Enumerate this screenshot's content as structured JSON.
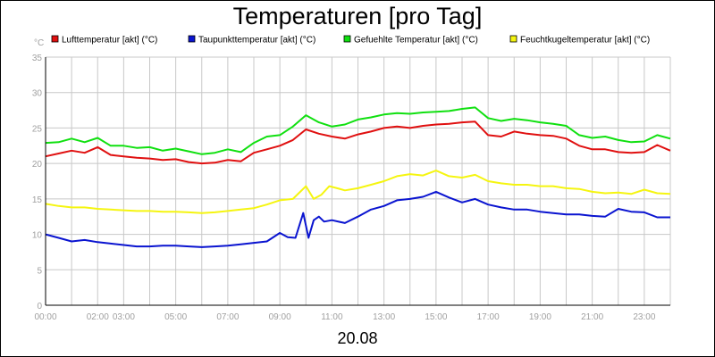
{
  "chart_data": {
    "type": "line",
    "title": "Temperaturen [pro Tag]",
    "ylabel": "°C",
    "xlabel": "20.08",
    "ylim": [
      0,
      35
    ],
    "xlim": [
      0,
      24
    ],
    "yticks": [
      0,
      5,
      10,
      15,
      20,
      25,
      30,
      35
    ],
    "xticks": [
      {
        "value": 0,
        "label": "00:00"
      },
      {
        "value": 2,
        "label": "02:00"
      },
      {
        "value": 3,
        "label": "03:00"
      },
      {
        "value": 5,
        "label": "05:00"
      },
      {
        "value": 7,
        "label": "07:00"
      },
      {
        "value": 9,
        "label": "09:00"
      },
      {
        "value": 11,
        "label": "11:00"
      },
      {
        "value": 13,
        "label": "13:00"
      },
      {
        "value": 15,
        "label": "15:00"
      },
      {
        "value": 17,
        "label": "17:00"
      },
      {
        "value": 19,
        "label": "19:00"
      },
      {
        "value": 21,
        "label": "21:00"
      },
      {
        "value": 23,
        "label": "23:00"
      }
    ],
    "grid": true,
    "legend_position": "top",
    "series": [
      {
        "name": "Lufttemperatur [akt] (°C)",
        "color": "#e01010",
        "x": [
          0,
          0.5,
          1,
          1.5,
          2,
          2.5,
          3,
          3.5,
          4,
          4.5,
          5,
          5.5,
          6,
          6.5,
          7,
          7.5,
          8,
          8.5,
          9,
          9.5,
          10,
          10.5,
          11,
          11.5,
          12,
          12.5,
          13,
          13.5,
          14,
          14.5,
          15,
          15.5,
          16,
          16.5,
          17,
          17.5,
          18,
          18.5,
          19,
          19.5,
          20,
          20.5,
          21,
          21.5,
          22,
          22.5,
          23,
          23.5,
          24
        ],
        "values": [
          21.0,
          21.4,
          21.8,
          21.5,
          22.3,
          21.2,
          21.0,
          20.8,
          20.7,
          20.5,
          20.6,
          20.2,
          20.0,
          20.1,
          20.5,
          20.3,
          21.5,
          22.0,
          22.5,
          23.3,
          24.8,
          24.2,
          23.8,
          23.5,
          24.1,
          24.5,
          25.0,
          25.2,
          25.0,
          25.3,
          25.5,
          25.6,
          25.8,
          25.9,
          24.0,
          23.8,
          24.5,
          24.2,
          24.0,
          23.9,
          23.5,
          22.5,
          22.0,
          22.0,
          21.6,
          21.5,
          21.6,
          22.6,
          21.8
        ]
      },
      {
        "name": "Taupunkttemperatur [akt] (°C)",
        "color": "#0a14d0",
        "x": [
          0,
          0.5,
          1,
          1.5,
          2,
          2.5,
          3,
          3.5,
          4,
          4.5,
          5,
          5.5,
          6,
          6.5,
          7,
          7.5,
          8,
          8.5,
          9,
          9.3,
          9.6,
          9.9,
          10.1,
          10.3,
          10.5,
          10.7,
          11,
          11.5,
          12,
          12.5,
          13,
          13.5,
          14,
          14.5,
          15,
          15.5,
          16,
          16.5,
          17,
          17.5,
          18,
          18.5,
          19,
          19.5,
          20,
          20.5,
          21,
          21.5,
          22,
          22.5,
          23,
          23.5,
          24
        ],
        "values": [
          10.0,
          9.5,
          9.0,
          9.2,
          8.9,
          8.7,
          8.5,
          8.3,
          8.3,
          8.4,
          8.4,
          8.3,
          8.2,
          8.3,
          8.4,
          8.6,
          8.8,
          9.0,
          10.2,
          9.6,
          9.5,
          13.0,
          9.5,
          12.0,
          12.5,
          11.8,
          12.0,
          11.6,
          12.5,
          13.5,
          14.0,
          14.8,
          15.0,
          15.3,
          16.0,
          15.2,
          14.5,
          15.0,
          14.2,
          13.8,
          13.5,
          13.5,
          13.2,
          13.0,
          12.8,
          12.8,
          12.6,
          12.5,
          13.6,
          13.2,
          13.1,
          12.4,
          12.4
        ]
      },
      {
        "name": "Gefuehlte Temperatur [akt] (°C)",
        "color": "#10e010",
        "x": [
          0,
          0.5,
          1,
          1.5,
          2,
          2.5,
          3,
          3.5,
          4,
          4.5,
          5,
          5.5,
          6,
          6.5,
          7,
          7.5,
          8,
          8.5,
          9,
          9.5,
          10,
          10.5,
          11,
          11.5,
          12,
          12.5,
          13,
          13.5,
          14,
          14.5,
          15,
          15.5,
          16,
          16.5,
          17,
          17.5,
          18,
          18.5,
          19,
          19.5,
          20,
          20.5,
          21,
          21.5,
          22,
          22.5,
          23,
          23.5,
          24
        ],
        "values": [
          22.9,
          23.0,
          23.5,
          23.0,
          23.6,
          22.5,
          22.5,
          22.2,
          22.3,
          21.8,
          22.1,
          21.7,
          21.3,
          21.5,
          22.0,
          21.6,
          22.9,
          23.8,
          24.0,
          25.2,
          26.8,
          25.8,
          25.2,
          25.5,
          26.2,
          26.5,
          26.9,
          27.1,
          27.0,
          27.2,
          27.3,
          27.4,
          27.7,
          27.9,
          26.4,
          26.0,
          26.3,
          26.1,
          25.8,
          25.6,
          25.3,
          24.0,
          23.6,
          23.8,
          23.3,
          23.0,
          23.1,
          24.0,
          23.5
        ]
      },
      {
        "name": "Feuchtkugeltemperatur [akt] (°C)",
        "color": "#f5f510",
        "x": [
          0,
          0.5,
          1,
          1.5,
          2,
          2.5,
          3,
          3.5,
          4,
          4.5,
          5,
          5.5,
          6,
          6.5,
          7,
          7.5,
          8,
          8.5,
          9,
          9.5,
          10,
          10.3,
          10.6,
          10.9,
          11.2,
          11.5,
          12,
          12.5,
          13,
          13.5,
          14,
          14.5,
          15,
          15.5,
          16,
          16.5,
          17,
          17.5,
          18,
          18.5,
          19,
          19.5,
          20,
          20.5,
          21,
          21.5,
          22,
          22.5,
          23,
          23.5,
          24
        ],
        "values": [
          14.3,
          14.0,
          13.8,
          13.8,
          13.6,
          13.5,
          13.4,
          13.3,
          13.3,
          13.2,
          13.2,
          13.1,
          13.0,
          13.1,
          13.3,
          13.5,
          13.7,
          14.2,
          14.8,
          15.0,
          16.8,
          15.0,
          15.6,
          16.8,
          16.5,
          16.2,
          16.5,
          17.0,
          17.5,
          18.2,
          18.5,
          18.3,
          19.0,
          18.2,
          18.0,
          18.4,
          17.5,
          17.2,
          17.0,
          17.0,
          16.8,
          16.8,
          16.5,
          16.4,
          16.0,
          15.8,
          15.9,
          15.7,
          16.3,
          15.8,
          15.7
        ]
      }
    ]
  }
}
